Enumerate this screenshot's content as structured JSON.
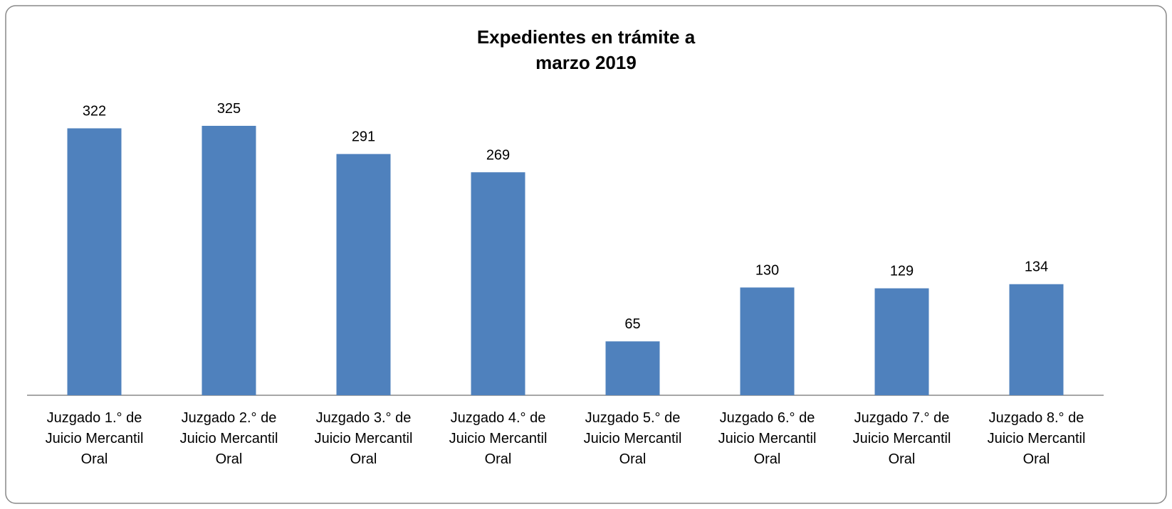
{
  "chart_data": {
    "type": "bar",
    "title": "Expedientes en trámite a marzo 2019",
    "categories": [
      "Juzgado 1.° de Juicio Mercantil Oral",
      "Juzgado 2.° de Juicio Mercantil Oral",
      "Juzgado 3.° de Juicio Mercantil Oral",
      "Juzgado 4.° de Juicio Mercantil Oral",
      "Juzgado 5.° de Juicio Mercantil Oral",
      "Juzgado 6.° de Juicio Mercantil Oral",
      "Juzgado 7.° de Juicio Mercantil Oral",
      "Juzgado 8.° de Juicio Mercantil Oral"
    ],
    "values": [
      322,
      325,
      291,
      269,
      65,
      130,
      129,
      134
    ],
    "color": "#4f81bd"
  }
}
